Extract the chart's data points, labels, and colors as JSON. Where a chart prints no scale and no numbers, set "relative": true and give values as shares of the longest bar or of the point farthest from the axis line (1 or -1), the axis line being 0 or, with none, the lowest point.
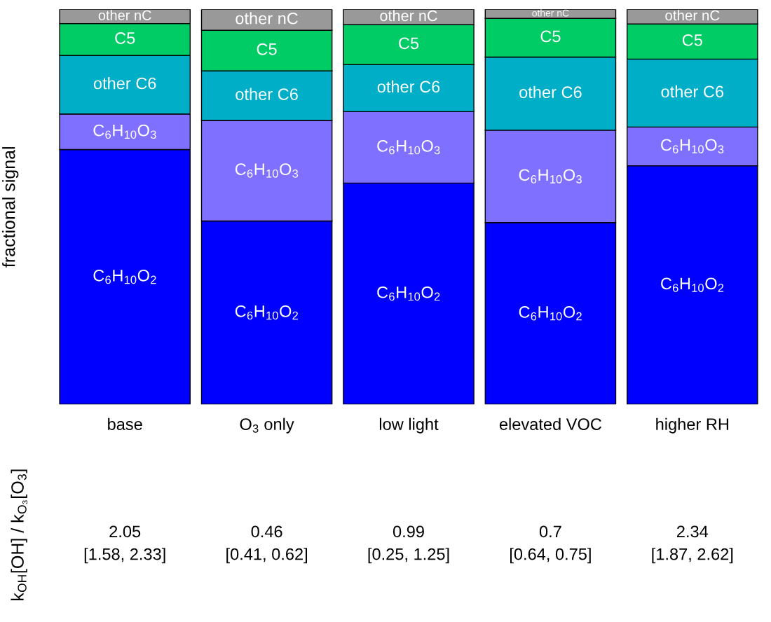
{
  "chart_data": {
    "type": "bar",
    "stacked": true,
    "relative": true,
    "legend": false,
    "grid": false,
    "tick_labels": "x",
    "ylabel": "fractional signal",
    "categories": [
      "base",
      "O$_{3}$ only",
      "low light",
      "elevated VOC",
      "higher RH"
    ],
    "series": [
      {
        "name": "C$_{6}$H$_{10}$O$_{2}$",
        "color": "#0000ff",
        "values": [
          0.645,
          0.464,
          0.56,
          0.46,
          0.604
        ]
      },
      {
        "name": "C$_{6}$H$_{10}$O$_{3}$",
        "color": "#8070ff",
        "values": [
          0.09,
          0.255,
          0.181,
          0.234,
          0.098
        ]
      },
      {
        "name": "other C6",
        "color": "#00aec8",
        "values": [
          0.148,
          0.125,
          0.119,
          0.185,
          0.172
        ]
      },
      {
        "name": "C5",
        "color": "#00cc66",
        "values": [
          0.081,
          0.103,
          0.101,
          0.098,
          0.089
        ]
      },
      {
        "name": "other nC",
        "color": "#999999",
        "values": [
          0.036,
          0.053,
          0.039,
          0.023,
          0.037
        ]
      }
    ],
    "annotations": [
      "k$_{OH}$[OH] / k$_{O₃}$[O$_{3}$]",
      "2.05\n[1.58, 2.33]",
      "0.46\n[0.41, 0.62]",
      "0.99\n[0.25, 1.25]",
      "0.7\n[0.64, 0.75]",
      "2.34\n[1.87, 2.62]"
    ]
  }
}
